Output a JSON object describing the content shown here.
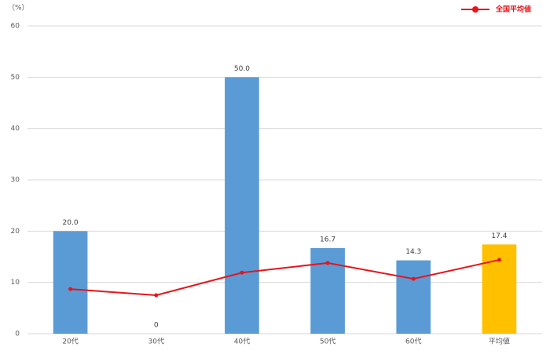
{
  "chart_data": {
    "type": "bar",
    "ylabel": "（%）",
    "categories": [
      "20代",
      "30代",
      "40代",
      "50代",
      "60代",
      "平均値"
    ],
    "values": [
      20,
      0,
      50,
      16.7,
      14.3,
      17.4
    ],
    "value_labels": [
      "20.0",
      "0",
      "50.0",
      "16.7",
      "14.3",
      "17.4"
    ],
    "bar_colors": [
      "#5b9bd5",
      "#5b9bd5",
      "#5b9bd5",
      "#5b9bd5",
      "#5b9bd5",
      "#ffc000"
    ],
    "series": [
      {
        "name": "全国平均値",
        "type": "line",
        "color": "#e8141b",
        "values": [
          8.7,
          7.5,
          11.9,
          13.8,
          10.7,
          14.4
        ]
      }
    ],
    "ylim": [
      0,
      60
    ],
    "yticks": [
      0,
      10,
      20,
      30,
      40,
      50,
      60
    ],
    "grid": true,
    "legend": "top-right"
  }
}
